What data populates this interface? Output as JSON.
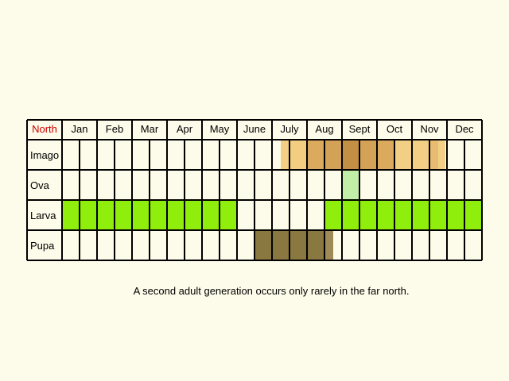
{
  "region_label": "North",
  "months": [
    "Jan",
    "Feb",
    "Mar",
    "Apr",
    "May",
    "June",
    "July",
    "Aug",
    "Sept",
    "Oct",
    "Nov",
    "Dec"
  ],
  "stages": [
    {
      "label": "Imago",
      "segments": [
        {
          "from": 12.5,
          "to": 13,
          "color": "#f3cf86"
        },
        {
          "from": 13,
          "to": 14,
          "color": "#f3ce81"
        },
        {
          "from": 14,
          "to": 15,
          "color": "#dcaa5c"
        },
        {
          "from": 15,
          "to": 16,
          "color": "#d4a257"
        },
        {
          "from": 16,
          "to": 17,
          "color": "#c28f44"
        },
        {
          "from": 17,
          "to": 18,
          "color": "#d4a257"
        },
        {
          "from": 18,
          "to": 19,
          "color": "#dcaa5c"
        },
        {
          "from": 19,
          "to": 20,
          "color": "#f3cf86"
        },
        {
          "from": 20,
          "to": 21,
          "color": "#f3cf86"
        },
        {
          "from": 21,
          "to": 21.5,
          "color": "#e8bc70"
        },
        {
          "from": 21.5,
          "to": 21.9,
          "color": "#f3cf86"
        }
      ]
    },
    {
      "label": "Ova",
      "segments": [
        {
          "from": 16,
          "to": 17,
          "color": "#c2efa7"
        }
      ]
    },
    {
      "label": "Larva",
      "segments": [
        {
          "from": 0,
          "to": 10,
          "color": "#8fee0b"
        },
        {
          "from": 15,
          "to": 24,
          "color": "#8fee0b"
        }
      ]
    },
    {
      "label": "Pupa",
      "segments": [
        {
          "from": 11,
          "to": 15,
          "color": "#8a7841"
        },
        {
          "from": 15,
          "to": 15.5,
          "color": "#9e8b56"
        }
      ]
    }
  ],
  "colors": {
    "region": "#cc0000",
    "grid": "#000000",
    "cell": "#fdfbe9"
  },
  "note": "A second adult generation occurs only rarely in the far north."
}
